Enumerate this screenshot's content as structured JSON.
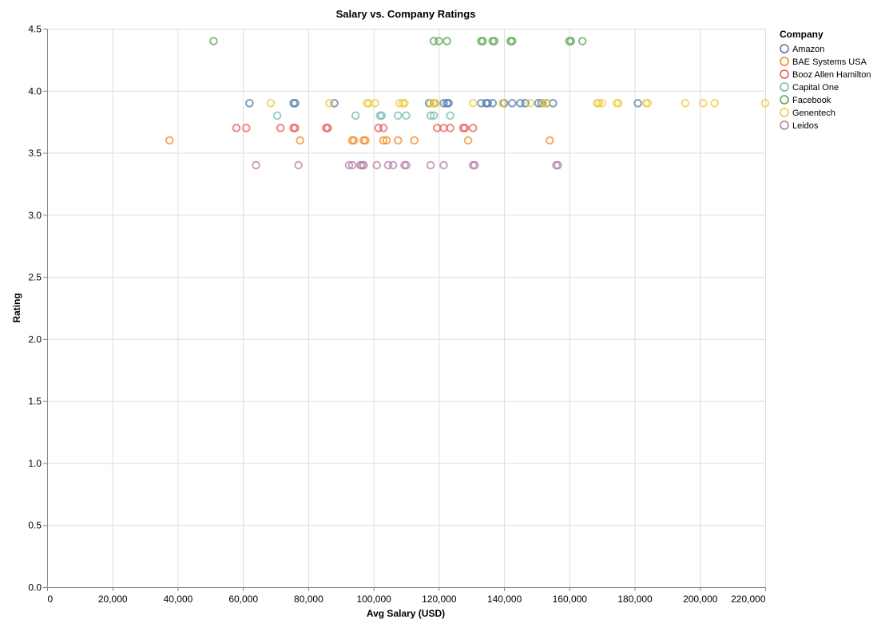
{
  "chart_data": {
    "type": "scatter",
    "title": "Salary vs. Company Ratings",
    "xlabel": "Avg Salary (USD)",
    "ylabel": "Rating",
    "xlim": [
      0,
      220000
    ],
    "ylim": [
      0,
      4.5
    ],
    "x_ticks": [
      0,
      20000,
      40000,
      60000,
      80000,
      100000,
      120000,
      140000,
      160000,
      180000,
      200000,
      220000
    ],
    "x_tick_labels": [
      "0",
      "20,000",
      "40,000",
      "60,000",
      "80,000",
      "100,000",
      "120,000",
      "140,000",
      "160,000",
      "180,000",
      "200,000",
      "220,000"
    ],
    "y_ticks": [
      0,
      0.5,
      1,
      1.5,
      2,
      2.5,
      3,
      3.5,
      4,
      4.5
    ],
    "y_tick_labels": [
      "0.0",
      "0.5",
      "1.0",
      "1.5",
      "2.0",
      "2.5",
      "3.0",
      "3.5",
      "4.0",
      "4.5"
    ],
    "grid": true,
    "marker": "hollow-circle",
    "legend": {
      "title": "Company",
      "placement": "right"
    },
    "series": [
      {
        "name": "Amazon",
        "color": "#4c78a8",
        "points": [
          [
            62000,
            3.9
          ],
          [
            75500,
            3.9
          ],
          [
            76000,
            3.9
          ],
          [
            88000,
            3.9
          ],
          [
            117000,
            3.9
          ],
          [
            118500,
            3.9
          ],
          [
            121500,
            3.9
          ],
          [
            122500,
            3.9
          ],
          [
            123000,
            3.9
          ],
          [
            133000,
            3.9
          ],
          [
            134500,
            3.9
          ],
          [
            135000,
            3.9
          ],
          [
            136500,
            3.9
          ],
          [
            140000,
            3.9
          ],
          [
            142500,
            3.9
          ],
          [
            145000,
            3.9
          ],
          [
            146500,
            3.9
          ],
          [
            150500,
            3.9
          ],
          [
            151500,
            3.9
          ],
          [
            153000,
            3.9
          ],
          [
            155000,
            3.9
          ],
          [
            181000,
            3.9
          ]
        ]
      },
      {
        "name": "BAE Systems USA",
        "color": "#f58518",
        "points": [
          [
            37500,
            3.6
          ],
          [
            77500,
            3.6
          ],
          [
            93500,
            3.6
          ],
          [
            94000,
            3.6
          ],
          [
            97000,
            3.6
          ],
          [
            97500,
            3.6
          ],
          [
            103000,
            3.6
          ],
          [
            104000,
            3.6
          ],
          [
            107500,
            3.6
          ],
          [
            112500,
            3.6
          ],
          [
            129000,
            3.6
          ],
          [
            154000,
            3.6
          ]
        ]
      },
      {
        "name": "Booz Allen Hamilton",
        "color": "#e45756",
        "points": [
          [
            58000,
            3.7
          ],
          [
            61000,
            3.7
          ],
          [
            71500,
            3.7
          ],
          [
            75500,
            3.7
          ],
          [
            76000,
            3.7
          ],
          [
            85500,
            3.7
          ],
          [
            86000,
            3.7
          ],
          [
            101500,
            3.7
          ],
          [
            103000,
            3.7
          ],
          [
            119500,
            3.7
          ],
          [
            121500,
            3.7
          ],
          [
            123500,
            3.7
          ],
          [
            127500,
            3.7
          ],
          [
            128000,
            3.7
          ],
          [
            130500,
            3.7
          ]
        ]
      },
      {
        "name": "Capital One",
        "color": "#72b7b2",
        "points": [
          [
            70500,
            3.8
          ],
          [
            94500,
            3.8
          ],
          [
            102000,
            3.8
          ],
          [
            102500,
            3.8
          ],
          [
            107500,
            3.8
          ],
          [
            110000,
            3.8
          ],
          [
            117500,
            3.8
          ],
          [
            118500,
            3.8
          ],
          [
            123500,
            3.8
          ]
        ]
      },
      {
        "name": "Facebook",
        "color": "#54a24b",
        "points": [
          [
            51000,
            4.4
          ],
          [
            118500,
            4.4
          ],
          [
            120000,
            4.4
          ],
          [
            122500,
            4.4
          ],
          [
            133000,
            4.4
          ],
          [
            133500,
            4.4
          ],
          [
            136500,
            4.4
          ],
          [
            137000,
            4.4
          ],
          [
            142000,
            4.4
          ],
          [
            142500,
            4.4
          ],
          [
            160000,
            4.4
          ],
          [
            160500,
            4.4
          ],
          [
            164000,
            4.4
          ]
        ]
      },
      {
        "name": "Genentech",
        "color": "#eeca3b",
        "points": [
          [
            68500,
            3.9
          ],
          [
            86500,
            3.9
          ],
          [
            98000,
            3.9
          ],
          [
            98500,
            3.9
          ],
          [
            100500,
            3.9
          ],
          [
            108000,
            3.9
          ],
          [
            109000,
            3.9
          ],
          [
            109500,
            3.9
          ],
          [
            117500,
            3.9
          ],
          [
            118500,
            3.9
          ],
          [
            119000,
            3.9
          ],
          [
            130500,
            3.9
          ],
          [
            139500,
            3.9
          ],
          [
            148000,
            3.9
          ],
          [
            152000,
            3.9
          ],
          [
            153000,
            3.9
          ],
          [
            168500,
            3.9
          ],
          [
            169000,
            3.9
          ],
          [
            170000,
            3.9
          ],
          [
            174500,
            3.9
          ],
          [
            175000,
            3.9
          ],
          [
            183500,
            3.9
          ],
          [
            184000,
            3.9
          ],
          [
            195500,
            3.9
          ],
          [
            201000,
            3.9
          ],
          [
            204500,
            3.9
          ],
          [
            220000,
            3.9
          ]
        ]
      },
      {
        "name": "Leidos",
        "color": "#b279a2",
        "points": [
          [
            64000,
            3.4
          ],
          [
            77000,
            3.4
          ],
          [
            92500,
            3.4
          ],
          [
            93500,
            3.4
          ],
          [
            96000,
            3.4
          ],
          [
            96500,
            3.4
          ],
          [
            97000,
            3.4
          ],
          [
            101000,
            3.4
          ],
          [
            104500,
            3.4
          ],
          [
            106000,
            3.4
          ],
          [
            109500,
            3.4
          ],
          [
            110000,
            3.4
          ],
          [
            117500,
            3.4
          ],
          [
            121500,
            3.4
          ],
          [
            130500,
            3.4
          ],
          [
            131000,
            3.4
          ],
          [
            156000,
            3.4
          ],
          [
            156500,
            3.4
          ]
        ]
      }
    ]
  }
}
